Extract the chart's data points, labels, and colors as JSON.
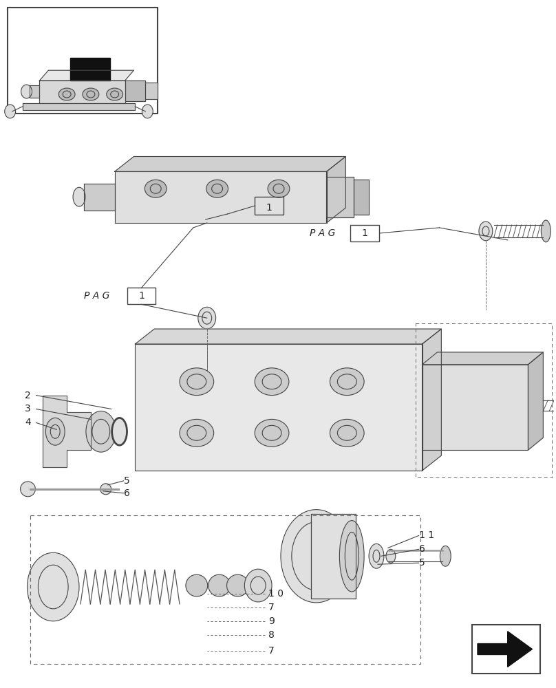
{
  "bg_color": "#ffffff",
  "line_color": "#555555",
  "fig_width": 8.08,
  "fig_height": 10.0,
  "dpi": 100
}
